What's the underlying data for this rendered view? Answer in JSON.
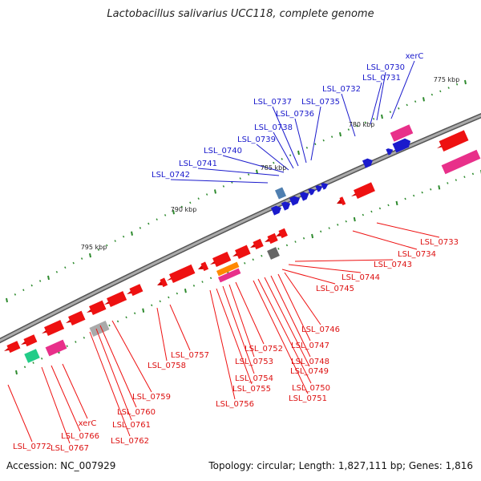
{
  "figure": {
    "title": "Lactobacillus salivarius UCC118, complete genome",
    "accession": "Accession: NC_007929",
    "summary": "Topology: circular; Length: 1,827,111 bp; Genes: 1,816"
  },
  "scale_labels": [
    "775 kbp",
    "780 kbp",
    "785 kbp",
    "790 kbp",
    "795 kbp"
  ],
  "forward_genes": [
    {
      "name": "xerC",
      "color": "#1a1acc"
    },
    {
      "name": "LSL_0730",
      "color": "#1a1acc"
    },
    {
      "name": "LSL_0731",
      "color": "#1a1acc"
    },
    {
      "name": "LSL_0732",
      "color": "#1a1acc"
    },
    {
      "name": "LSL_0735",
      "color": "#1a1acc"
    },
    {
      "name": "LSL_0736",
      "color": "#1a1acc"
    },
    {
      "name": "LSL_0737",
      "color": "#1a1acc"
    },
    {
      "name": "LSL_0738",
      "color": "#1a1acc"
    },
    {
      "name": "LSL_0739",
      "color": "#1a1acc"
    },
    {
      "name": "LSL_0740",
      "color": "#1a1acc"
    },
    {
      "name": "LSL_0741",
      "color": "#1a1acc"
    },
    {
      "name": "LSL_0742",
      "color": "#1a1acc"
    }
  ],
  "reverse_genes": [
    {
      "name": "LSL_0733"
    },
    {
      "name": "LSL_0734"
    },
    {
      "name": "LSL_0743"
    },
    {
      "name": "LSL_0744"
    },
    {
      "name": "LSL_0745"
    },
    {
      "name": "LSL_0746"
    },
    {
      "name": "LSL_0747"
    },
    {
      "name": "LSL_0748"
    },
    {
      "name": "LSL_0749"
    },
    {
      "name": "LSL_0750"
    },
    {
      "name": "LSL_0751"
    },
    {
      "name": "LSL_0752"
    },
    {
      "name": "LSL_0753"
    },
    {
      "name": "LSL_0754"
    },
    {
      "name": "LSL_0755"
    },
    {
      "name": "LSL_0756"
    },
    {
      "name": "LSL_0757"
    },
    {
      "name": "LSL_0758"
    },
    {
      "name": "LSL_0759"
    },
    {
      "name": "LSL_0760"
    },
    {
      "name": "LSL_0761"
    },
    {
      "name": "LSL_0762"
    },
    {
      "name": "xerC"
    },
    {
      "name": "LSL_0766"
    },
    {
      "name": "LSL_0767"
    },
    {
      "name": "LSL_0772"
    }
  ],
  "colors": {
    "forward": "#1a1acc",
    "reverse": "#ee1111",
    "backbone": "#888888",
    "tick": "#2e8b2e",
    "rna_magenta": "#e8308a",
    "rna_green": "#22cc88",
    "pseudo_gray": "#aaaaaa",
    "orange": "#ff8800",
    "steelblue": "#4f7fb0"
  }
}
